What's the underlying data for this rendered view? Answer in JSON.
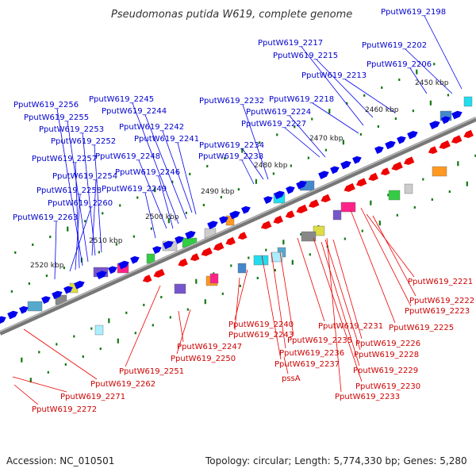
{
  "title": "Pseudomonas putida W619, complete genome",
  "footer": {
    "accession": "Accession: NC_010501",
    "summary": "Topology: circular; Length: 5,774,330 bp; Genes: 5,280"
  },
  "scale_labels": [
    "2450 kbp",
    "2460 kbp",
    "2470 kbp",
    "2480 kbp",
    "2490 kbp",
    "2500 kbp",
    "2510 kbp",
    "2520 kbp"
  ],
  "forward_genes": [
    "PputW619_2198",
    "PputW619_2202",
    "PputW619_2206",
    "PputW619_2213",
    "PputW619_2215",
    "PputW619_2217",
    "PputW619_2218",
    "PputW619_2224",
    "PputW619_2227",
    "PputW619_2232",
    "PputW619_2234",
    "PputW619_2238",
    "PputW619_2241",
    "PputW619_2242",
    "PputW619_2244",
    "PputW619_2245",
    "PputW619_2246",
    "PputW619_2248",
    "PputW619_2249",
    "PputW619_2252",
    "PputW619_2253",
    "PputW619_2254",
    "PputW619_2255",
    "PputW619_2256",
    "PputW619_2257",
    "PputW619_2258",
    "PputW619_2260",
    "PputW619_2263"
  ],
  "reverse_genes": [
    "PputW619_2221",
    "PputW619_2222",
    "PputW619_2223",
    "PputW619_2225",
    "PputW619_2226",
    "PputW619_2228",
    "PputW619_2229",
    "PputW619_2230",
    "PputW619_2231",
    "PputW619_2233",
    "PputW619_2235",
    "PputW619_2236",
    "PputW619_2237",
    "pssA",
    "PputW619_2240",
    "PputW619_2243",
    "PputW619_2247",
    "PputW619_2250",
    "PputW619_2251",
    "PputW619_2262",
    "PputW619_2271",
    "PputW619_2272"
  ],
  "colors": {
    "forward": "#0000ee",
    "reverse": "#ee0000",
    "backbone": "#777777",
    "tick": "#117711"
  }
}
